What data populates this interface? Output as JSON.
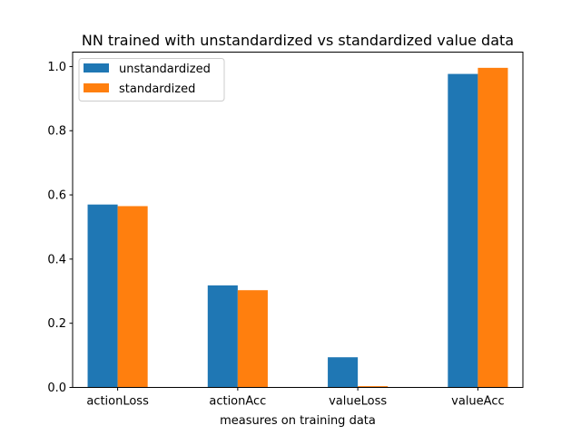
{
  "chart_data": {
    "type": "bar",
    "title": "NN trained with unstandardized vs standardized value data",
    "xlabel": "measures on training data",
    "ylabel": "",
    "categories": [
      "actionLoss",
      "actionAcc",
      "valueLoss",
      "valueAcc"
    ],
    "series": [
      {
        "name": "unstandardized",
        "color": "#1f77b4",
        "values": [
          0.57,
          0.318,
          0.094,
          0.977
        ]
      },
      {
        "name": "standardized",
        "color": "#ff7f0e",
        "values": [
          0.565,
          0.303,
          0.004,
          0.996
        ]
      }
    ],
    "ylim": [
      0,
      1.045
    ],
    "yticks": [
      "0.0",
      "0.2",
      "0.4",
      "0.6",
      "0.8",
      "1.0"
    ],
    "grid": false,
    "legend": "top-left"
  }
}
